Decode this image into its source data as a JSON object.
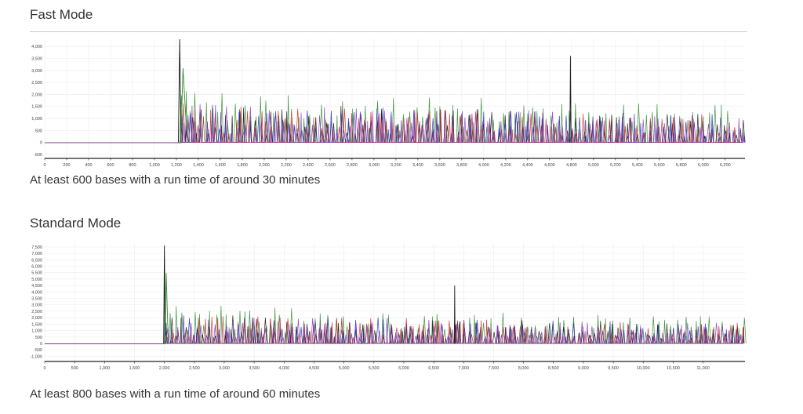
{
  "sections": [
    {
      "title": "Fast Mode",
      "caption": "At least 600 bases with a run time of around 30 minutes"
    },
    {
      "title": "Standard Mode",
      "caption": "At least 800 bases with a run time of around 60 minutes"
    }
  ],
  "chart_data": [
    {
      "type": "line",
      "title": "",
      "xlabel": "",
      "ylabel": "",
      "xlim": [
        0,
        6380
      ],
      "ylim": [
        -600,
        4300
      ],
      "x_ticks": [
        "0",
        "200",
        "400",
        "600",
        "800",
        "1,000",
        "1,200",
        "1,400",
        "1,600",
        "1,800",
        "2,000",
        "2,200",
        "2,400",
        "2,600",
        "2,800",
        "3,000",
        "3,200",
        "3,400",
        "3,600",
        "3,800",
        "4,000",
        "4,200",
        "4,400",
        "4,600",
        "4,800",
        "5,000",
        "5,200",
        "5,400",
        "5,600",
        "5,800",
        "6,000",
        "6,200"
      ],
      "x_tick_values": [
        0,
        200,
        400,
        600,
        800,
        1000,
        1200,
        1400,
        1600,
        1800,
        2000,
        2200,
        2400,
        2600,
        2800,
        3000,
        3200,
        3400,
        3600,
        3800,
        4000,
        4200,
        4400,
        4600,
        4800,
        5000,
        5200,
        5400,
        5600,
        5800,
        6000,
        6200
      ],
      "y_ticks": [
        "4,000",
        "3,500",
        "3,000",
        "2,500",
        "2,000",
        "1,500",
        "1,000",
        "500",
        "0",
        "-500"
      ],
      "y_tick_values": [
        4000,
        3500,
        3000,
        2500,
        2000,
        1500,
        1000,
        500,
        0,
        -500
      ],
      "grid": true,
      "signal_start": 1230,
      "peak_x": 1230,
      "peak_y": 4300,
      "spike_x": 4790,
      "spike_y": 3600,
      "typical_peak_max": 2200,
      "series": [
        {
          "color": "#2e8b2e"
        },
        {
          "color": "#111111"
        },
        {
          "color": "#2a2ab4"
        },
        {
          "color": "#cc2a2a"
        },
        {
          "color": "#8a3ab8"
        }
      ]
    },
    {
      "type": "line",
      "title": "",
      "xlabel": "",
      "ylabel": "",
      "xlim": [
        0,
        11700
      ],
      "ylim": [
        -1100,
        7800
      ],
      "x_ticks": [
        "0",
        "500",
        "1,000",
        "1,500",
        "2,000",
        "2,500",
        "3,000",
        "3,500",
        "4,000",
        "4,500",
        "5,000",
        "5,500",
        "6,000",
        "6,500",
        "7,000",
        "7,500",
        "8,000",
        "8,500",
        "9,000",
        "9,500",
        "10,000",
        "10,500",
        "11,000"
      ],
      "x_tick_values": [
        0,
        500,
        1000,
        1500,
        2000,
        2500,
        3000,
        3500,
        4000,
        4500,
        5000,
        5500,
        6000,
        6500,
        7000,
        7500,
        8000,
        8500,
        9000,
        9500,
        10000,
        10500,
        11000
      ],
      "y_ticks": [
        "7,500",
        "7,000",
        "6,500",
        "6,000",
        "5,500",
        "5,000",
        "4,500",
        "4,000",
        "3,500",
        "3,000",
        "2,500",
        "2,000",
        "1,500",
        "1,000",
        "500",
        "0",
        "-500",
        "-1,000"
      ],
      "y_tick_values": [
        7500,
        7000,
        6500,
        6000,
        5500,
        5000,
        4500,
        4000,
        3500,
        3000,
        2500,
        2000,
        1500,
        1000,
        500,
        0,
        -500,
        -1000
      ],
      "grid": true,
      "signal_start": 2000,
      "peak_x": 2000,
      "peak_y": 7600,
      "spike_x": 6850,
      "spike_y": 4500,
      "typical_peak_max": 3000,
      "series": [
        {
          "color": "#2e8b2e"
        },
        {
          "color": "#111111"
        },
        {
          "color": "#2a2ab4"
        },
        {
          "color": "#cc2a2a"
        },
        {
          "color": "#8a3ab8"
        }
      ]
    }
  ]
}
